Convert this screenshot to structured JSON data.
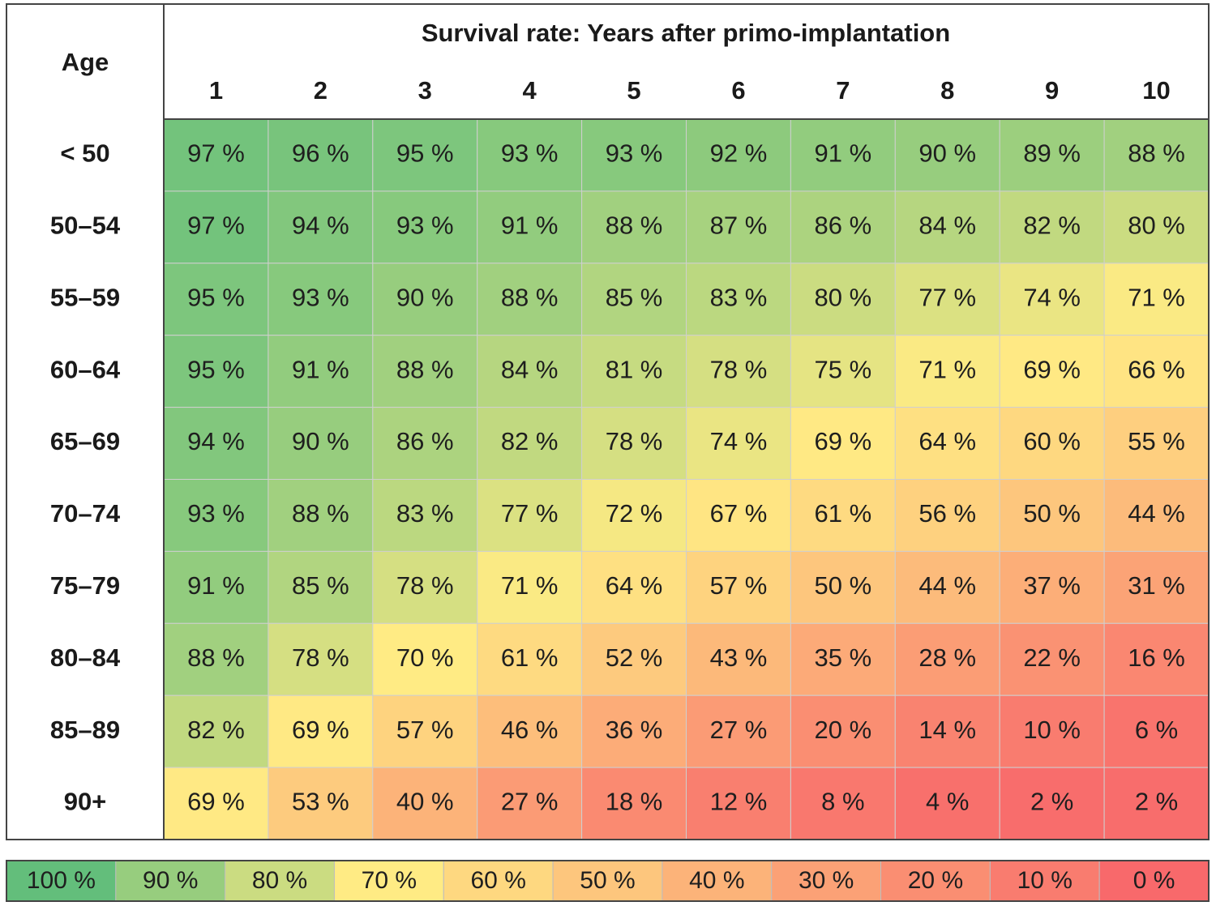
{
  "chart_data": {
    "type": "heatmap",
    "row_header": "Age",
    "column_header": "Survival rate: Years after primo-implantation",
    "columns": [
      "1",
      "2",
      "3",
      "4",
      "5",
      "6",
      "7",
      "8",
      "9",
      "10"
    ],
    "rows": [
      "< 50",
      "50–54",
      "55–59",
      "60–64",
      "65–69",
      "70–74",
      "75–79",
      "80–84",
      "85–89",
      "90+"
    ],
    "values": [
      [
        97,
        96,
        95,
        93,
        93,
        92,
        91,
        90,
        89,
        88
      ],
      [
        97,
        94,
        93,
        91,
        88,
        87,
        86,
        84,
        82,
        80
      ],
      [
        95,
        93,
        90,
        88,
        85,
        83,
        80,
        77,
        74,
        71
      ],
      [
        95,
        91,
        88,
        84,
        81,
        78,
        75,
        71,
        69,
        66
      ],
      [
        94,
        90,
        86,
        82,
        78,
        74,
        69,
        64,
        60,
        55
      ],
      [
        93,
        88,
        83,
        77,
        72,
        67,
        61,
        56,
        50,
        44
      ],
      [
        91,
        85,
        78,
        71,
        64,
        57,
        50,
        44,
        37,
        31
      ],
      [
        88,
        78,
        70,
        61,
        52,
        43,
        35,
        28,
        22,
        16
      ],
      [
        82,
        69,
        57,
        46,
        36,
        27,
        20,
        14,
        10,
        6
      ],
      [
        69,
        53,
        40,
        27,
        18,
        12,
        8,
        4,
        2,
        2
      ]
    ],
    "value_suffix": " %",
    "color_scale": [
      {
        "value": 100,
        "color": "#63be7b"
      },
      {
        "value": 70,
        "color": "#ffeb84"
      },
      {
        "value": 0,
        "color": "#f8696b"
      }
    ],
    "legend": {
      "values": [
        100,
        90,
        80,
        70,
        60,
        50,
        40,
        30,
        20,
        10,
        0
      ],
      "labels": [
        "100 %",
        "90 %",
        "80 %",
        "70 %",
        "60 %",
        "50 %",
        "40 %",
        "30 %",
        "20 %",
        "10 %",
        "0 %"
      ],
      "placement": "bottom"
    }
  }
}
